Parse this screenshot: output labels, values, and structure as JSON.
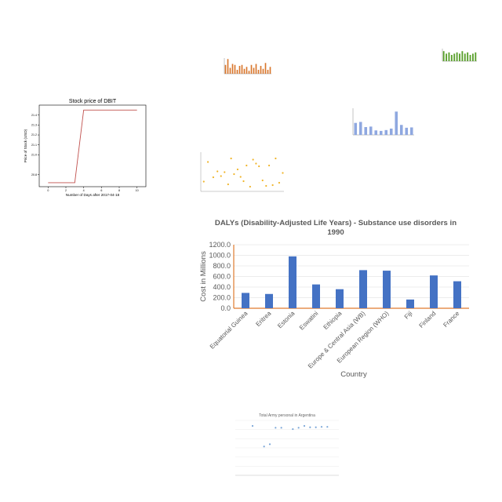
{
  "chart_data": [
    {
      "id": "orange-bars",
      "type": "bar",
      "title": "",
      "categories": [
        "",
        "",
        "",
        "",
        "",
        "",
        "",
        "",
        "",
        "",
        "",
        "",
        "",
        "",
        "",
        "",
        "",
        "",
        "",
        ""
      ],
      "values": [
        9,
        15,
        6,
        10,
        9,
        4,
        8,
        9,
        5,
        7,
        3,
        9,
        6,
        10,
        4,
        8,
        5,
        11,
        4,
        7
      ],
      "ylim": [
        0,
        16
      ],
      "colors": {
        "bar": "#d9762b"
      }
    },
    {
      "id": "green-bars",
      "type": "bar",
      "title": "",
      "categories": [
        "",
        "",
        "",
        "",
        "",
        "",
        "",
        "",
        "",
        "",
        "",
        "",
        ""
      ],
      "values": [
        8,
        6,
        7,
        5,
        6,
        7,
        6,
        8,
        6,
        7,
        5,
        6,
        7
      ],
      "ylim": [
        0,
        10
      ],
      "colors": {
        "bar": "#5aa02c"
      }
    },
    {
      "id": "dbit-stock",
      "type": "line",
      "title": "Stock price of DBIT",
      "xlabel": "Number of Days after 2017-04-18",
      "ylabel": "Price of Stock (USD)",
      "x": [
        0,
        1,
        2,
        3,
        4,
        5,
        6,
        7,
        8,
        9,
        10
      ],
      "y": [
        20.72,
        20.72,
        20.72,
        20.72,
        21.45,
        21.45,
        21.45,
        21.45,
        21.45,
        21.45,
        21.45
      ],
      "xlim": [
        -1,
        11
      ],
      "ylim": [
        20.68,
        21.5
      ],
      "xticks": [
        0,
        2,
        4,
        6,
        8,
        10
      ],
      "yticks": [
        20.8,
        21.0,
        21.1,
        21.2,
        21.3,
        21.4
      ],
      "yticklabels": [
        "20.8",
        "21.0",
        "21.1",
        "21.2",
        "21.3",
        "21.4"
      ],
      "colors": {
        "line": "#c0504d"
      }
    },
    {
      "id": "dalys-small",
      "type": "bar",
      "title": "",
      "categories": [
        "",
        "",
        "",
        "",
        "",
        "",
        "",
        "",
        "",
        "",
        "",
        ""
      ],
      "values": [
        720,
        780,
        470,
        500,
        270,
        240,
        290,
        380,
        1400,
        600,
        430,
        450
      ],
      "ylim": [
        0,
        1600
      ],
      "colors": {
        "bar": "#8fa8e0"
      }
    },
    {
      "id": "population-scatter",
      "type": "scatter",
      "title": "",
      "x": [
        0.5,
        1.2,
        2.1,
        2.8,
        3.4,
        4.0,
        4.6,
        5.1,
        5.6,
        6.2,
        6.7,
        7.2,
        7.7,
        8.3,
        8.8,
        9.3,
        9.8,
        10.4,
        11.0,
        11.5,
        12.1,
        12.6,
        13.2,
        13.8
      ],
      "y": [
        2.5,
        7.5,
        3.6,
        5.1,
        3.9,
        4.9,
        1.8,
        8.4,
        4.4,
        5.6,
        3.7,
        2.6,
        6.6,
        1.2,
        8.1,
        7.1,
        6.4,
        2.8,
        1.4,
        6.6,
        1.6,
        8.4,
        2.2,
        4.7
      ],
      "xlim": [
        0,
        14
      ],
      "ylim": [
        0,
        10
      ],
      "colors": {
        "point": "#f0b428"
      }
    },
    {
      "id": "dalys-main",
      "type": "bar",
      "title": "DALYs (Disability-Adjusted Life Years) - Substance use disorders in 1990",
      "title_lines": [
        "DALYs (Disability-Adjusted Life Years) - Substance use disorders in",
        "1990"
      ],
      "xlabel": "Country",
      "ylabel": "Cost in Millions",
      "categories": [
        "Equatorial Guinea",
        "Eritrea",
        "Estonia",
        "Eswatini",
        "Ethiopia",
        "Europe & Central Asia (WB)",
        "European Region (WHO)",
        "Fiji",
        "Finland",
        "France"
      ],
      "values": [
        290,
        270,
        980,
        450,
        360,
        720,
        710,
        165,
        620,
        510
      ],
      "ylim": [
        0,
        1200
      ],
      "yticks": [
        0,
        200,
        400,
        600,
        800,
        1000,
        1200
      ],
      "yticklabels": [
        "0.0",
        "200.0",
        "400.0",
        "600.0",
        "800.0",
        "1000.0",
        "1200.0"
      ],
      "grid": true,
      "colors": {
        "bar": "#4472c4",
        "axis": "#e07a2e",
        "grid": "#d9d9d9",
        "text": "#595959"
      }
    },
    {
      "id": "army-scatter",
      "type": "scatter",
      "title": "Total Army personal in Argentina",
      "x": [
        1989,
        1991,
        1992,
        1993,
        1994,
        1996,
        1997,
        1998,
        1999,
        2000,
        2001,
        2002
      ],
      "y": [
        10.8,
        6.3,
        6.8,
        10.4,
        10.4,
        10.1,
        10.4,
        10.8,
        10.5,
        10.5,
        10.6,
        10.6
      ],
      "xlim": [
        1986,
        2004
      ],
      "ylim": [
        0,
        12
      ],
      "colors": {
        "point": "#7aa6d8",
        "grid": "#e4e4e4"
      }
    }
  ]
}
